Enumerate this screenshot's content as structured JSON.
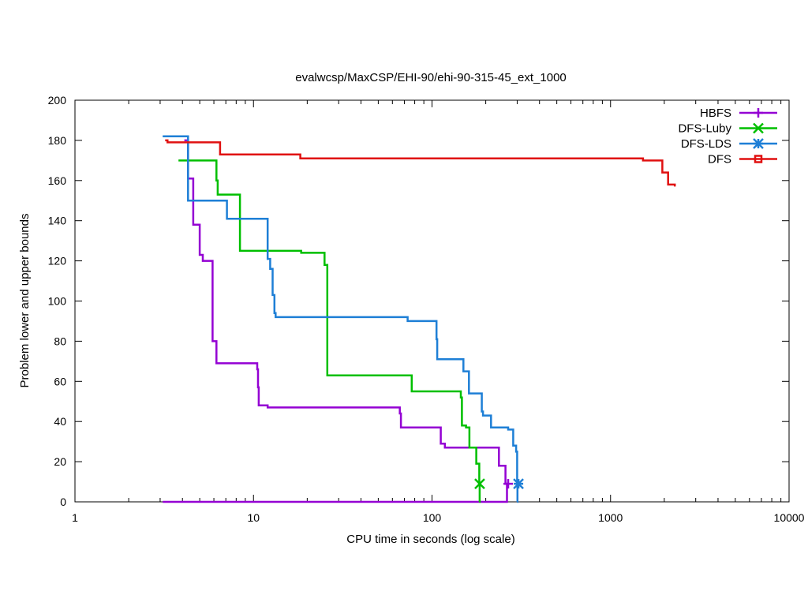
{
  "chart_data": {
    "type": "line",
    "title": "evalwcsp/MaxCSP/EHI-90/ehi-90-315-45_ext_1000",
    "xlabel": "CPU time in seconds (log scale)",
    "ylabel": "Problem lower and upper bounds",
    "xscale": "log",
    "xlim": [
      1,
      10000
    ],
    "ylim": [
      0,
      200
    ],
    "xticks": [
      1,
      10,
      100,
      1000,
      10000
    ],
    "xtick_labels": [
      "1",
      "10",
      "100",
      "1000",
      "10000"
    ],
    "yticks": [
      0,
      20,
      40,
      60,
      80,
      100,
      120,
      140,
      160,
      180,
      200
    ],
    "ytick_labels": [
      "0",
      "20",
      "40",
      "60",
      "80",
      "100",
      "120",
      "140",
      "160",
      "180",
      "200"
    ],
    "legend_position": "top-right",
    "series": [
      {
        "name": "HBFS",
        "color": "#9400d3",
        "marker": "plus",
        "upper": [
          [
            4.1,
            180
          ],
          [
            4.3,
            161
          ],
          [
            4.6,
            161
          ],
          [
            4.6,
            138
          ],
          [
            5.0,
            138
          ],
          [
            5.0,
            123
          ],
          [
            5.1,
            123
          ],
          [
            5.2,
            120
          ],
          [
            5.8,
            120
          ],
          [
            5.9,
            80
          ],
          [
            6.1,
            80
          ],
          [
            6.2,
            69
          ],
          [
            10.4,
            69
          ],
          [
            10.5,
            66
          ],
          [
            10.6,
            57
          ],
          [
            10.7,
            48
          ],
          [
            11.8,
            48
          ],
          [
            12.0,
            47
          ],
          [
            65,
            47
          ],
          [
            66,
            44
          ],
          [
            67,
            37
          ],
          [
            108,
            37
          ],
          [
            112,
            29
          ],
          [
            118,
            27
          ],
          [
            220,
            27
          ],
          [
            237,
            18
          ],
          [
            255,
            18
          ],
          [
            258,
            9
          ],
          [
            265,
            9
          ]
        ],
        "lower": [
          [
            3.1,
            0
          ],
          [
            262,
            0
          ],
          [
            263,
            9
          ],
          [
            266,
            9
          ]
        ],
        "final_point": [
          267,
          9
        ]
      },
      {
        "name": "DFS-Luby",
        "color": "#00bf00",
        "marker": "x",
        "upper": [
          [
            3.8,
            170
          ],
          [
            6.1,
            170
          ],
          [
            6.2,
            160
          ],
          [
            6.3,
            153
          ],
          [
            8.3,
            153
          ],
          [
            8.4,
            125
          ],
          [
            18,
            125
          ],
          [
            18.5,
            124
          ],
          [
            24.5,
            124
          ],
          [
            25,
            118
          ],
          [
            25.6,
            118
          ],
          [
            25.9,
            63
          ],
          [
            76,
            63
          ],
          [
            77,
            55
          ],
          [
            140,
            55
          ],
          [
            145,
            52
          ],
          [
            147,
            38
          ],
          [
            155,
            37
          ],
          [
            162,
            27
          ],
          [
            175,
            27
          ],
          [
            177,
            19
          ],
          [
            183,
            19
          ],
          [
            184,
            9
          ],
          [
            185,
            9
          ]
        ],
        "lower": [
          [
            184,
            0
          ],
          [
            185,
            9
          ]
        ],
        "final_point": [
          185,
          9
        ]
      },
      {
        "name": "DFS-LDS",
        "color": "#1e7fd6",
        "marker": "star",
        "upper": [
          [
            3.1,
            182
          ],
          [
            4.2,
            182
          ],
          [
            4.3,
            150
          ],
          [
            7.0,
            150
          ],
          [
            7.1,
            141
          ],
          [
            11.8,
            141
          ],
          [
            12.0,
            121
          ],
          [
            12.4,
            116
          ],
          [
            12.8,
            103
          ],
          [
            13.1,
            94
          ],
          [
            13.3,
            92
          ],
          [
            72,
            92
          ],
          [
            73,
            90
          ],
          [
            104,
            90
          ],
          [
            106,
            81
          ],
          [
            107,
            71
          ],
          [
            146,
            71
          ],
          [
            150,
            65
          ],
          [
            158,
            65
          ],
          [
            161,
            54
          ],
          [
            187,
            54
          ],
          [
            190,
            45
          ],
          [
            193,
            43
          ],
          [
            210,
            43
          ],
          [
            214,
            37
          ],
          [
            262,
            37
          ],
          [
            267,
            36
          ],
          [
            282,
            36
          ],
          [
            285,
            28
          ],
          [
            296,
            25
          ],
          [
            300,
            9
          ],
          [
            305,
            9
          ]
        ],
        "lower": [
          [
            300,
            0
          ],
          [
            301,
            9
          ]
        ],
        "final_point": [
          305,
          9
        ]
      },
      {
        "name": "DFS",
        "color": "#e01010",
        "marker": "square",
        "upper": [
          [
            3.2,
            180
          ],
          [
            3.3,
            179
          ],
          [
            6.4,
            179
          ],
          [
            6.5,
            173
          ],
          [
            18,
            173
          ],
          [
            18.3,
            171
          ],
          [
            1500,
            171
          ],
          [
            1520,
            170
          ],
          [
            1920,
            170
          ],
          [
            1950,
            164
          ],
          [
            2080,
            164
          ],
          [
            2100,
            158
          ],
          [
            2280,
            158
          ],
          [
            2290,
            157
          ]
        ],
        "lower": []
      }
    ]
  }
}
